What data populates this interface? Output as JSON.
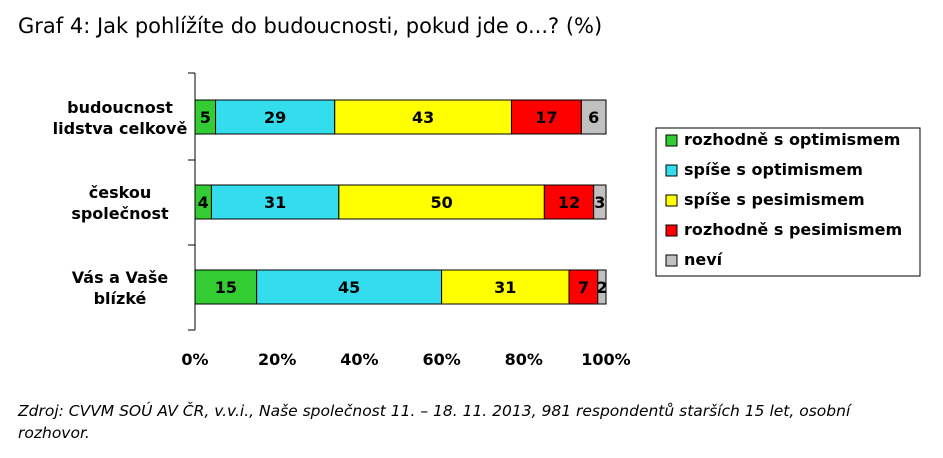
{
  "title": "Graf 4: Jak pohlížíte do budoucnosti, pokud jde o...? (%)",
  "note": "Zdroj: CVVM SOÚ AV ČR, v.v.i., Naše společnost 11. – 18. 11. 2013, 981 respondentů starších 15 let, osobní rozhovor.",
  "colors": {
    "rozhodne_optimismus": "#33cc33",
    "spise_optimismus": "#33ddee",
    "spise_pesimismus": "#ffff00",
    "rozhodne_pesimismus": "#ff0000",
    "nevi": "#c0c0c0"
  },
  "chart_data": {
    "type": "bar",
    "orientation": "horizontal",
    "stacked": true,
    "percent_stacked": true,
    "categories": [
      [
        "budoucnost",
        "lidstva celkově"
      ],
      [
        "českou",
        "společnost"
      ],
      [
        "Vás a Vaše",
        "blízké"
      ]
    ],
    "series": [
      {
        "name": "rozhodně s optimismem",
        "color": "#33cc33",
        "values": [
          5,
          4,
          15
        ]
      },
      {
        "name": "spíše s optimismem",
        "color": "#33ddee",
        "values": [
          29,
          31,
          45
        ]
      },
      {
        "name": "spíše s pesimismem",
        "color": "#ffff00",
        "values": [
          43,
          50,
          31
        ]
      },
      {
        "name": "rozhodně s pesimismem",
        "color": "#ff0000",
        "values": [
          17,
          12,
          7
        ]
      },
      {
        "name": "neví",
        "color": "#c0c0c0",
        "values": [
          6,
          3,
          2
        ]
      }
    ],
    "xlim": [
      0,
      100
    ],
    "xticks": [
      "0%",
      "20%",
      "40%",
      "60%",
      "80%",
      "100%"
    ],
    "grid": false,
    "legend": "right"
  }
}
